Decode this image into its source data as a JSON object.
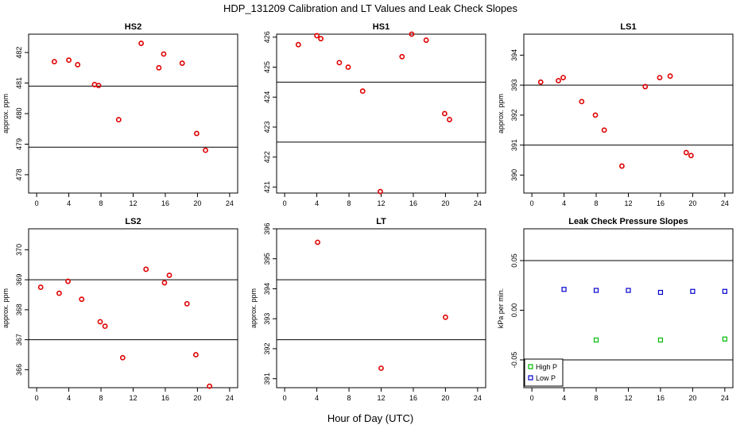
{
  "figure": {
    "title": "HDP_131209  Calibration and LT Values and Leak Check Slopes",
    "xlabel": "Hour of Day (UTC)"
  },
  "chart_data": [
    {
      "id": "hs2",
      "type": "scatter",
      "title": "HS2",
      "ylabel": "approx. ppm",
      "xlim": [
        -1,
        25
      ],
      "ylim": [
        477.4,
        482.6
      ],
      "xticks": [
        0,
        4,
        8,
        12,
        16,
        20,
        24
      ],
      "yticks": [
        478,
        479,
        480,
        481,
        482
      ],
      "hlines": [
        480.9,
        478.9
      ],
      "series": [
        {
          "color": "#e00000",
          "marker": "circle",
          "x": [
            2.2,
            4.0,
            5.1,
            7.2,
            7.7,
            10.2,
            13.0,
            15.2,
            15.8,
            18.1,
            19.9,
            21.0
          ],
          "y": [
            481.7,
            481.75,
            481.6,
            480.95,
            480.92,
            479.8,
            482.3,
            481.5,
            481.95,
            481.65,
            479.35,
            478.8
          ]
        }
      ]
    },
    {
      "id": "hs1",
      "type": "scatter",
      "title": "HS1",
      "ylabel": "",
      "xlim": [
        -1,
        25
      ],
      "ylim": [
        420.8,
        426.1
      ],
      "xticks": [
        0,
        4,
        8,
        12,
        16,
        20,
        24
      ],
      "yticks": [
        421,
        422,
        423,
        424,
        425,
        426
      ],
      "hlines": [
        424.5,
        422.5
      ],
      "series": [
        {
          "color": "#e00000",
          "marker": "circle",
          "x": [
            1.7,
            4.0,
            4.5,
            6.8,
            7.9,
            9.7,
            11.9,
            14.6,
            15.8,
            17.6,
            19.9,
            20.5
          ],
          "y": [
            425.75,
            426.05,
            425.95,
            425.15,
            425.0,
            424.2,
            420.85,
            425.35,
            426.1,
            425.9,
            423.45,
            423.25
          ]
        }
      ]
    },
    {
      "id": "ls1",
      "type": "scatter",
      "title": "LS1",
      "ylabel": "approx. ppm",
      "xlim": [
        -1,
        25
      ],
      "ylim": [
        389.4,
        394.7
      ],
      "xticks": [
        0,
        4,
        8,
        12,
        16,
        20,
        24
      ],
      "yticks": [
        390,
        391,
        392,
        393,
        394
      ],
      "hlines": [
        393.0,
        391.0
      ],
      "series": [
        {
          "color": "#e00000",
          "marker": "circle",
          "x": [
            1.1,
            3.3,
            3.9,
            6.2,
            7.9,
            9.0,
            11.2,
            14.1,
            15.9,
            17.2,
            19.2,
            19.8
          ],
          "y": [
            393.1,
            393.15,
            393.25,
            392.45,
            392.0,
            391.5,
            390.3,
            392.95,
            393.25,
            393.3,
            390.75,
            390.65
          ]
        }
      ]
    },
    {
      "id": "ls2",
      "type": "scatter",
      "title": "LS2",
      "ylabel": "approx. ppm",
      "xlim": [
        -1,
        25
      ],
      "ylim": [
        365.4,
        370.7
      ],
      "xticks": [
        0,
        4,
        8,
        12,
        16,
        20,
        24
      ],
      "yticks": [
        366,
        367,
        368,
        369,
        370
      ],
      "hlines": [
        369.0,
        367.0
      ],
      "series": [
        {
          "color": "#e00000",
          "marker": "circle",
          "x": [
            0.5,
            2.8,
            3.9,
            5.6,
            7.9,
            8.5,
            10.7,
            13.6,
            15.9,
            16.5,
            18.7,
            19.8,
            21.5
          ],
          "y": [
            368.75,
            368.55,
            368.95,
            368.35,
            367.6,
            367.45,
            366.4,
            369.35,
            368.9,
            369.15,
            368.2,
            366.5,
            365.45
          ]
        }
      ]
    },
    {
      "id": "lt",
      "type": "scatter",
      "title": "LT",
      "ylabel": "approx. ppm",
      "xlim": [
        -1,
        25
      ],
      "ylim": [
        390.7,
        396.0
      ],
      "xticks": [
        0,
        4,
        8,
        12,
        16,
        20,
        24
      ],
      "yticks": [
        391,
        392,
        393,
        394,
        395,
        396
      ],
      "hlines": [
        394.3,
        392.3
      ],
      "series": [
        {
          "color": "#e00000",
          "marker": "circle",
          "x": [
            4.1,
            12.0,
            20.0
          ],
          "y": [
            395.55,
            391.35,
            393.05
          ]
        }
      ]
    },
    {
      "id": "leak",
      "type": "scatter",
      "title": "Leak Check Pressure Slopes",
      "ylabel": "kPa per min.",
      "xlim": [
        -1,
        25
      ],
      "ylim": [
        -0.078,
        0.082
      ],
      "xticks": [
        0,
        4,
        8,
        12,
        16,
        20,
        24
      ],
      "yticks": [
        -0.05,
        0.0,
        0.05
      ],
      "ytick_labels": [
        "-0.05",
        "0.00",
        "0.05"
      ],
      "hlines": [
        0.05,
        -0.05
      ],
      "legend": {
        "position": "bottom-left"
      },
      "series": [
        {
          "name": "High P",
          "color": "#00bb00",
          "marker": "square",
          "x": [
            8,
            16,
            24
          ],
          "y": [
            -0.03,
            -0.03,
            -0.029
          ]
        },
        {
          "name": "Low P",
          "color": "#0000cc",
          "marker": "square",
          "x": [
            4,
            8,
            12,
            16,
            20,
            24
          ],
          "y": [
            0.021,
            0.02,
            0.02,
            0.018,
            0.019,
            0.019
          ]
        }
      ]
    }
  ]
}
